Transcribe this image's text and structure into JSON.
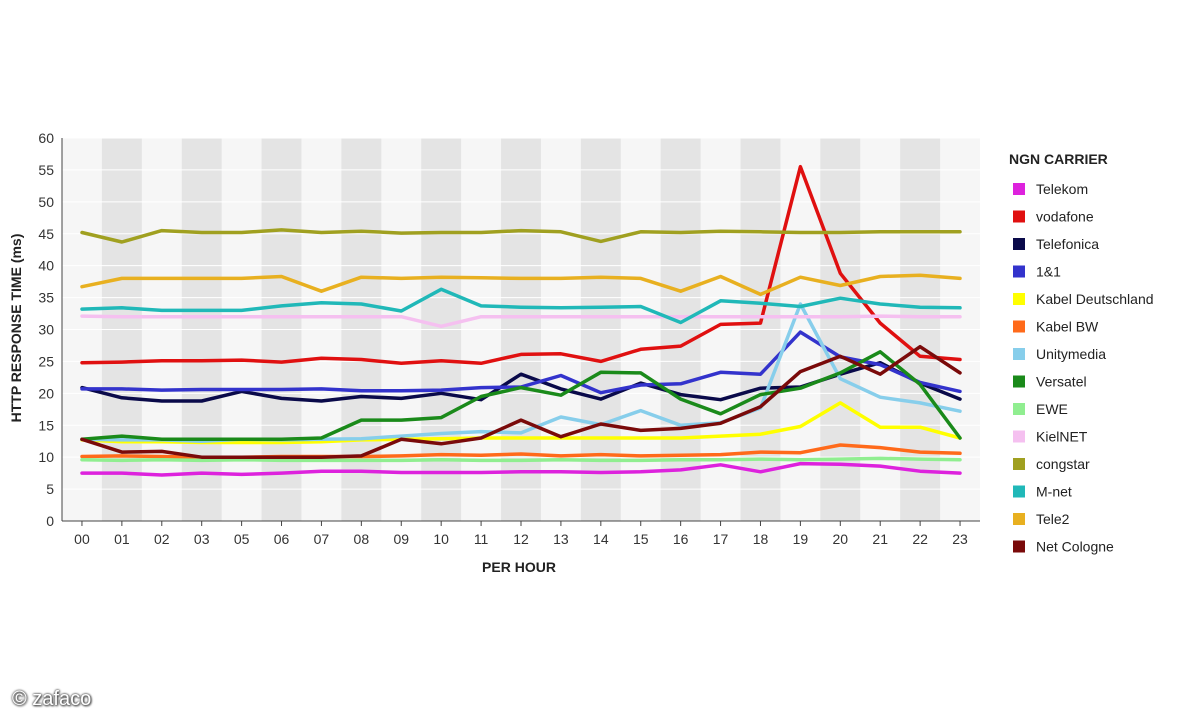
{
  "chart_data": {
    "type": "line",
    "xlabel": "PER HOUR",
    "ylabel": "HTTP RESPONSE TIME (ms)",
    "ylim": [
      0,
      60
    ],
    "yticks": [
      0,
      5,
      10,
      15,
      20,
      25,
      30,
      35,
      40,
      45,
      50,
      55,
      60
    ],
    "categories": [
      "00",
      "01",
      "02",
      "03",
      "05",
      "06",
      "07",
      "08",
      "09",
      "10",
      "11",
      "12",
      "13",
      "14",
      "15",
      "16",
      "17",
      "18",
      "19",
      "20",
      "21",
      "22",
      "23"
    ],
    "legend_title": "NGN CARRIER",
    "legend_position": "right",
    "grid": "alternating vertical bands",
    "series": [
      {
        "name": "Telekom",
        "color": "#dd22dd",
        "values": [
          7.5,
          7.5,
          7.2,
          7.5,
          7.3,
          7.5,
          7.8,
          7.8,
          7.6,
          7.6,
          7.6,
          7.7,
          7.7,
          7.6,
          7.7,
          8.0,
          8.8,
          7.7,
          9.0,
          8.9,
          8.6,
          7.8,
          7.5
        ]
      },
      {
        "name": "vodafone",
        "color": "#e01010",
        "values": [
          24.8,
          24.9,
          25.1,
          25.1,
          25.2,
          24.9,
          25.5,
          25.3,
          24.7,
          25.1,
          24.7,
          26.1,
          26.2,
          25.0,
          26.9,
          27.4,
          30.8,
          31.0,
          55.5,
          38.8,
          31.0,
          25.8,
          25.3
        ]
      },
      {
        "name": "Telefonica",
        "color": "#0a0a4a",
        "values": [
          20.9,
          19.3,
          18.8,
          18.8,
          20.3,
          19.2,
          18.8,
          19.5,
          19.2,
          20.0,
          19.0,
          23.0,
          20.7,
          19.1,
          21.6,
          19.8,
          19.0,
          20.8,
          21.0,
          23.0,
          24.8,
          21.6,
          19.1
        ]
      },
      {
        "name": "1&1",
        "color": "#3333cc",
        "values": [
          20.7,
          20.7,
          20.5,
          20.6,
          20.6,
          20.6,
          20.7,
          20.4,
          20.4,
          20.5,
          20.9,
          21.0,
          22.8,
          20.1,
          21.3,
          21.5,
          23.3,
          23.0,
          29.6,
          25.7,
          24.5,
          21.7,
          20.3
        ]
      },
      {
        "name": "Kabel Deutschland",
        "color": "#ffff00",
        "values": [
          12.7,
          12.4,
          12.4,
          12.3,
          12.3,
          12.3,
          12.4,
          12.7,
          12.8,
          12.9,
          13.0,
          13.0,
          13.0,
          13.0,
          13.0,
          13.0,
          13.3,
          13.6,
          14.8,
          18.5,
          14.7,
          14.7,
          13.0
        ]
      },
      {
        "name": "Kabel BW",
        "color": "#ff6a1a",
        "values": [
          10.1,
          10.2,
          10.1,
          10.0,
          10.0,
          10.1,
          10.1,
          10.1,
          10.2,
          10.4,
          10.3,
          10.5,
          10.2,
          10.4,
          10.2,
          10.3,
          10.4,
          10.8,
          10.7,
          11.9,
          11.5,
          10.8,
          10.6
        ]
      },
      {
        "name": "Unitymedia",
        "color": "#87ceeb",
        "values": [
          12.8,
          12.7,
          12.7,
          12.5,
          12.8,
          12.7,
          12.8,
          12.9,
          13.3,
          13.7,
          14.0,
          13.8,
          16.3,
          15.1,
          17.3,
          15.0,
          15.4,
          17.7,
          34.0,
          22.3,
          19.4,
          18.5,
          17.2
        ]
      },
      {
        "name": "Versatel",
        "color": "#1a8a1a",
        "values": [
          12.8,
          13.3,
          12.8,
          12.8,
          12.8,
          12.8,
          13.0,
          15.8,
          15.8,
          16.2,
          19.5,
          20.9,
          19.7,
          23.3,
          23.2,
          19.1,
          16.8,
          19.8,
          20.8,
          23.2,
          26.5,
          21.4,
          13.0
        ]
      },
      {
        "name": "EWE",
        "color": "#90ee90",
        "values": [
          9.6,
          9.5,
          9.6,
          9.5,
          9.6,
          9.5,
          9.5,
          9.5,
          9.5,
          9.6,
          9.5,
          9.5,
          9.6,
          9.5,
          9.5,
          9.6,
          9.6,
          9.7,
          9.6,
          9.7,
          9.8,
          9.7,
          9.6
        ]
      },
      {
        "name": "KielNET",
        "color": "#f5c0f0",
        "values": [
          32.1,
          32.0,
          32.0,
          32.0,
          32.0,
          32.0,
          32.0,
          32.0,
          32.0,
          30.5,
          32.0,
          32.0,
          32.0,
          32.0,
          32.0,
          32.0,
          32.0,
          32.0,
          32.0,
          32.0,
          32.1,
          32.0,
          32.0
        ]
      },
      {
        "name": "congstar",
        "color": "#a0a020",
        "values": [
          45.2,
          43.7,
          45.5,
          45.2,
          45.2,
          45.6,
          45.2,
          45.4,
          45.1,
          45.2,
          45.2,
          45.5,
          45.3,
          43.8,
          45.3,
          45.2,
          45.4,
          45.3,
          45.2,
          45.2,
          45.3,
          45.3,
          45.3
        ]
      },
      {
        "name": "M-net",
        "color": "#20b8b8",
        "values": [
          33.2,
          33.4,
          33.0,
          33.0,
          33.0,
          33.7,
          34.2,
          34.0,
          32.9,
          36.3,
          33.7,
          33.5,
          33.4,
          33.5,
          33.6,
          31.1,
          34.5,
          34.1,
          33.6,
          34.9,
          34.0,
          33.5,
          33.4
        ]
      },
      {
        "name": "Tele2",
        "color": "#e8b020",
        "values": [
          36.7,
          38.0,
          38.0,
          38.0,
          38.0,
          38.3,
          36.0,
          38.2,
          38.0,
          38.2,
          38.1,
          38.0,
          38.0,
          38.2,
          38.0,
          36.0,
          38.3,
          35.5,
          38.2,
          36.9,
          38.3,
          38.5,
          38.0
        ]
      },
      {
        "name": "Net Cologne",
        "color": "#7a0a0a",
        "values": [
          12.8,
          10.8,
          10.9,
          10.0,
          10.0,
          10.0,
          10.0,
          10.2,
          12.8,
          12.1,
          13.0,
          15.8,
          13.2,
          15.2,
          14.2,
          14.5,
          15.3,
          17.9,
          23.4,
          25.8,
          23.0,
          27.3,
          23.2
        ]
      }
    ]
  },
  "watermark": {
    "text": "© zafaco"
  }
}
